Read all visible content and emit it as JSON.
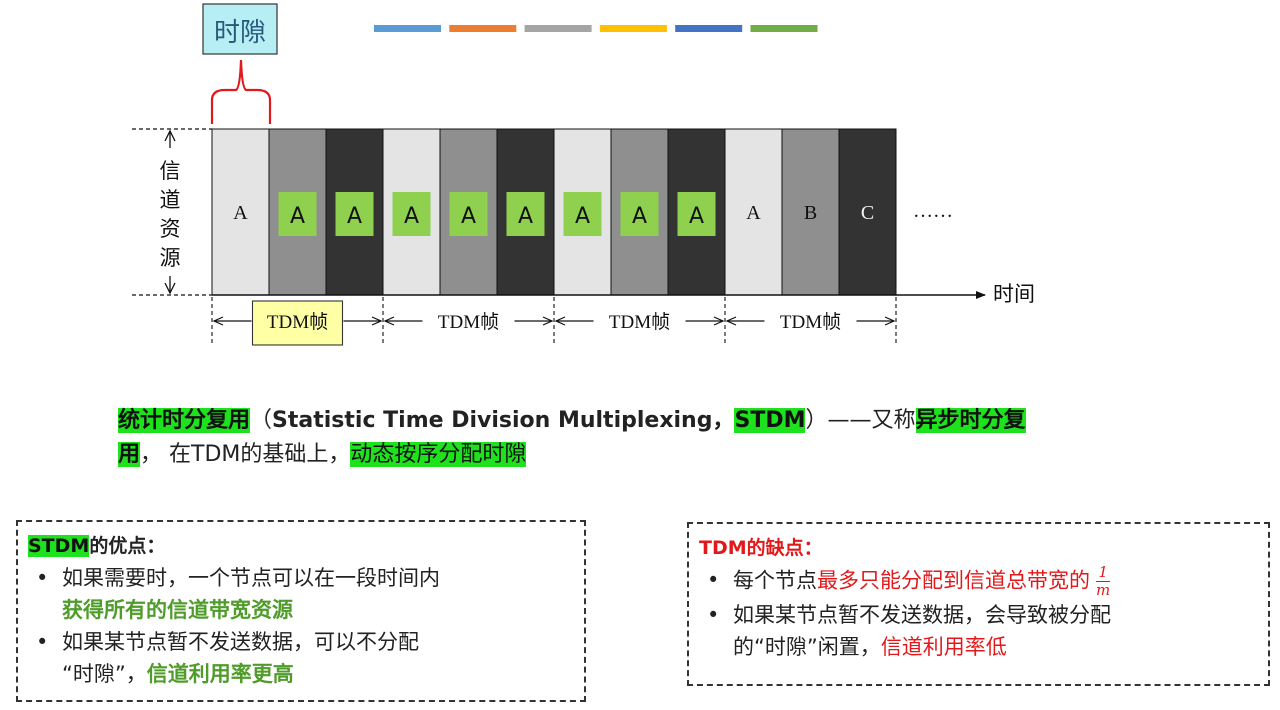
{
  "diagram": {
    "slot_label": "时隙",
    "color_bar": [
      "#5b9bd5",
      "#ed7d31",
      "#a5a5a5",
      "#ffc000",
      "#4472c4",
      "#70ad47"
    ],
    "y_axis_label": [
      "信",
      "道",
      "资",
      "源"
    ],
    "time_label": "时间",
    "ellipsis": "……",
    "frame_label": "TDM帧",
    "cells": [
      {
        "label": "A",
        "bg": "#e4e4e4",
        "highlight": false
      },
      {
        "label": "A",
        "bg": "#8f8f8f",
        "highlight": true
      },
      {
        "label": "A",
        "bg": "#333333",
        "highlight": true
      },
      {
        "label": "A",
        "bg": "#e4e4e4",
        "highlight": true
      },
      {
        "label": "A",
        "bg": "#8f8f8f",
        "highlight": true
      },
      {
        "label": "A",
        "bg": "#333333",
        "highlight": true
      },
      {
        "label": "A",
        "bg": "#e4e4e4",
        "highlight": true
      },
      {
        "label": "A",
        "bg": "#8f8f8f",
        "highlight": true
      },
      {
        "label": "A",
        "bg": "#333333",
        "highlight": true
      },
      {
        "label": "A",
        "bg": "#e4e4e4",
        "highlight": false
      },
      {
        "label": "B",
        "bg": "#8f8f8f",
        "highlight": false
      },
      {
        "label": "C",
        "bg": "#333333",
        "highlight": false
      }
    ],
    "highlight_color": "#8fd14f"
  },
  "description": {
    "term": "统计时分复用",
    "paren_open": "（",
    "english": "Statistic Time Division Multiplexing，",
    "abbr": "STDM",
    "paren_close": "）",
    "dash_text": "——又称",
    "alias_part1": "异步时分复",
    "alias_part2": "用",
    "mid_text": "， 在TDM的基础上，",
    "key_phrase": "动态按序分配时隙"
  },
  "advantages": {
    "title_hl": "STDM",
    "title_rest": "的优点：",
    "item1_text": "如果需要时，一个节点可以在一段时间内",
    "item1_green": "获得所有的信道带宽资源",
    "item2_text": "如果某节点暂不发送数据，可以不分配",
    "item2_text2": "“时隙”，",
    "item2_green": "信道利用率更高"
  },
  "disadvantages": {
    "title": "TDM的缺点：",
    "item1_text": "每个节点",
    "item1_red": "最多只能分配到信道总带宽的",
    "frac_num": "1",
    "frac_den": "m",
    "item2_text": "如果某节点暂不发送数据，会导致被分配",
    "item2_text2": "的“时隙”闲置，",
    "item2_red": "信道利用率低"
  }
}
